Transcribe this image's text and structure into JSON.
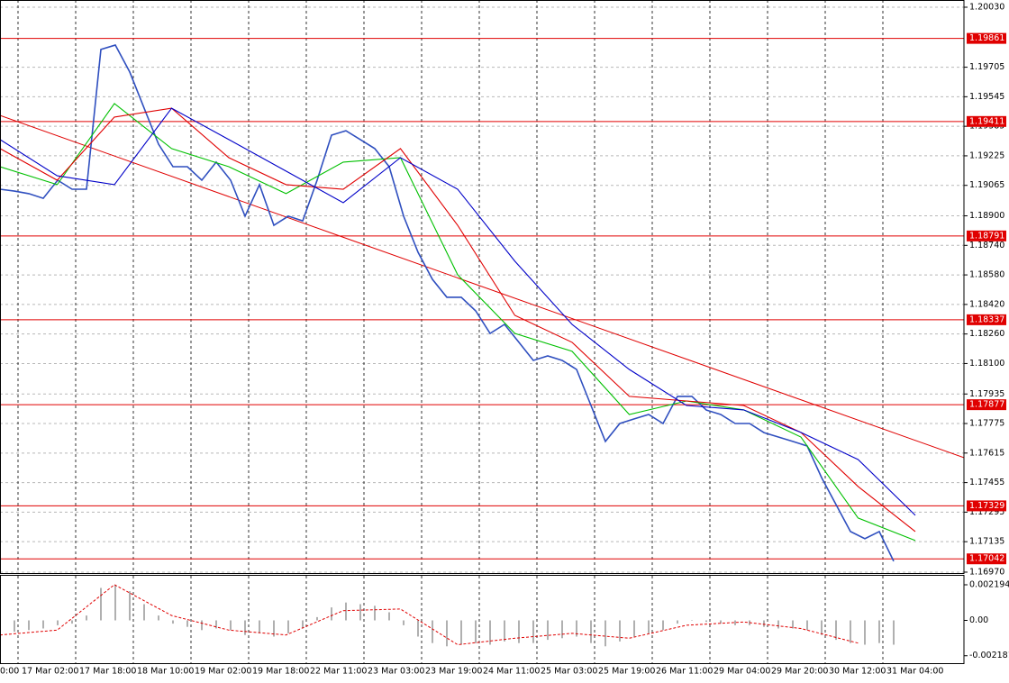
{
  "chart_data": {
    "type": "line",
    "ylim": [
      1.16965,
      1.20069
    ],
    "yticks": [
      {
        "value": 1.2003,
        "label": "1.20030"
      },
      1.19705,
      1.19545,
      1.19385,
      1.19225,
      1.19065,
      {
        "value": 1.189,
        "label": "1.18900"
      },
      {
        "value": 1.1874,
        "label": "1.18740"
      },
      {
        "value": 1.1858,
        "label": "1.18580"
      },
      {
        "value": 1.1842,
        "label": "1.18420"
      },
      {
        "value": 1.1826,
        "label": "1.18260"
      },
      {
        "value": 1.181,
        "label": "1.18100"
      },
      1.17935,
      1.17775,
      1.17615,
      1.17455,
      1.17295,
      1.17135,
      {
        "value": 1.1697,
        "label": "1.16970"
      }
    ],
    "x_labels": [
      "0:00",
      "17 Mar 02:00",
      "17 Mar 18:00",
      "18 Mar 10:00",
      "19 Mar 02:00",
      "19 Mar 18:00",
      "22 Mar 11:00",
      "23 Mar 03:00",
      "23 Mar 19:00",
      "24 Mar 11:00",
      "25 Mar 03:00",
      "25 Mar 19:00",
      "26 Mar 11:00",
      "29 Mar 04:00",
      "29 Mar 20:00",
      "30 Mar 12:00",
      "31 Mar 04:00"
    ],
    "series": [
      {
        "color": "#2f4fbf",
        "values": [
          1.19044,
          1.19034,
          1.1902,
          1.18995,
          1.19093,
          1.19044,
          1.19044,
          1.19801,
          1.19825,
          1.19679,
          1.19483,
          1.19288,
          1.19166,
          1.19166,
          1.19093,
          1.19191,
          1.19093,
          1.18898,
          1.19069,
          1.18849,
          1.18898,
          1.18873,
          1.19093,
          1.19337,
          1.19361,
          1.19313,
          1.19264,
          1.19166,
          1.18898,
          1.18703,
          1.18556,
          1.18459,
          1.18459,
          1.18385,
          1.18263,
          1.18312,
          1.18215,
          1.18117,
          1.18141,
          1.18117,
          1.18068,
          1.17873,
          1.17678,
          1.17775,
          1.178,
          1.17824,
          1.17775,
          1.17922,
          1.17922,
          1.17848,
          1.17824,
          1.17775,
          1.17775,
          1.17726,
          1.17702,
          1.17678,
          1.17653,
          1.17482,
          1.17336,
          1.1719,
          1.17151,
          1.1719,
          1.17029
        ]
      },
      {
        "color": "#00c000",
        "values": [
          1.19166,
          1.19069,
          1.19508,
          1.19264,
          1.19166,
          1.1902,
          1.19191,
          1.19215,
          1.18581,
          1.18263,
          1.18166,
          1.17824,
          1.17897,
          1.17849,
          1.17702,
          1.17263,
          1.17141
        ]
      },
      {
        "color": "#e00000",
        "values": [
          1.19264,
          1.19093,
          1.19435,
          1.19483,
          1.19215,
          1.19069,
          1.19044,
          1.19264,
          1.18849,
          1.18361,
          1.18215,
          1.17922,
          1.17897,
          1.17873,
          1.17727,
          1.17434,
          1.1719
        ]
      },
      {
        "color": "#0000c8",
        "values": [
          1.19313,
          1.19117,
          1.19069,
          1.19483,
          1.19313,
          1.19142,
          1.18971,
          1.19215,
          1.19044,
          1.18654,
          1.18312,
          1.18068,
          1.17873,
          1.17849,
          1.17727,
          1.1758,
          1.17278
        ]
      }
    ],
    "trendline": {
      "color": "#e00000",
      "values": [
        1.19444,
        1.1759
      ]
    },
    "levels": [
      1.19861,
      1.19411,
      1.18791,
      1.18337,
      1.17877,
      1.17329,
      1.17042
    ],
    "level_color": "#e00000",
    "macd": {
      "ylim": [
        -0.00264,
        0.00275
      ],
      "yticks": [
        {
          "value": 0.002194,
          "label": "0.002194"
        },
        {
          "value": 0,
          "label": "0.00"
        },
        {
          "value": -0.002181,
          "label": "-0.002181"
        }
      ],
      "histogram": [
        -0.0008,
        -0.0007,
        -0.0006,
        -0.0005,
        -0.0003,
        -0.0002,
        0.0003,
        0.002,
        0.0022,
        0.0018,
        0.001,
        0.0003,
        -0.0002,
        -0.0004,
        -0.0006,
        -0.0005,
        -0.0006,
        -0.0009,
        -0.0008,
        -0.001,
        -0.0008,
        -0.0005,
        0.0002,
        0.0008,
        0.0011,
        0.001,
        0.0009,
        0.0005,
        -0.0003,
        -0.001,
        -0.0014,
        -0.0016,
        -0.0015,
        -0.0014,
        -0.0015,
        -0.0013,
        -0.0014,
        -0.0014,
        -0.0012,
        -0.0011,
        -0.001,
        -0.0014,
        -0.0016,
        -0.0013,
        -0.001,
        -0.0008,
        -0.0006,
        -0.0002,
        0,
        -0.0001,
        -0.0002,
        -0.0003,
        -0.0003,
        -0.0004,
        -0.0005,
        -0.0005,
        -0.0006,
        -0.0009,
        -0.0012,
        -0.0014,
        -0.0015,
        -0.0014,
        -0.0015
      ],
      "signal": [
        -0.0009,
        -0.0006,
        0.0022,
        0.0003,
        -0.0006,
        -0.0009,
        0.0006,
        0.0007,
        -0.0015,
        -0.0011,
        -0.0008,
        -0.0011,
        -0.0003,
        -0.0001,
        -0.0005,
        -0.0014
      ]
    }
  }
}
